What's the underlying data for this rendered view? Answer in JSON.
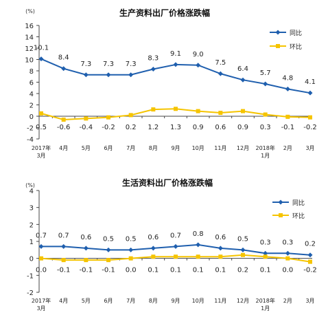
{
  "colors": {
    "yoy": "#1f5fae",
    "mom": "#f5c400",
    "axis": "#444444",
    "frame": "#bfbfbf"
  },
  "chart_data": [
    {
      "type": "line",
      "title": "生产资料出厂价格涨跌幅",
      "unit": "(%)",
      "categories": [
        "2017年\n3月",
        "4月",
        "5月",
        "6月",
        "7月",
        "8月",
        "9月",
        "10月",
        "11月",
        "12月",
        "2018年\n1月",
        "2月",
        "3月"
      ],
      "series": [
        {
          "name": "同比",
          "values": [
            10.1,
            8.4,
            7.3,
            7.3,
            7.3,
            8.3,
            9.1,
            9.0,
            7.5,
            6.4,
            5.7,
            4.8,
            4.1
          ]
        },
        {
          "name": "环比",
          "values": [
            0.5,
            -0.6,
            -0.4,
            -0.2,
            0.2,
            1.2,
            1.3,
            0.9,
            0.6,
            0.9,
            0.3,
            -0.1,
            -0.2
          ]
        }
      ],
      "ylim": [
        -4,
        16
      ],
      "yticks": [
        -4,
        -2,
        0,
        2,
        4,
        6,
        8,
        10,
        12,
        14,
        16
      ],
      "legend": "top-right"
    },
    {
      "type": "line",
      "title": "生活资料出厂价格涨跌幅",
      "unit": "(%)",
      "categories": [
        "2017年\n3月",
        "4月",
        "5月",
        "6月",
        "7月",
        "8月",
        "9月",
        "10月",
        "11月",
        "12月",
        "2018年\n1月",
        "2月",
        "3月"
      ],
      "series": [
        {
          "name": "同比",
          "values": [
            0.7,
            0.7,
            0.6,
            0.5,
            0.5,
            0.6,
            0.7,
            0.8,
            0.6,
            0.5,
            0.3,
            0.3,
            0.2
          ]
        },
        {
          "name": "环比",
          "values": [
            0.0,
            -0.1,
            -0.1,
            -0.1,
            0.0,
            0.1,
            0.1,
            0.1,
            0.1,
            0.2,
            0.1,
            0.0,
            -0.2
          ]
        }
      ],
      "ylim": [
        -2,
        4
      ],
      "yticks": [
        -2,
        -1,
        0,
        1,
        2,
        3,
        4
      ],
      "legend": "top-right"
    }
  ]
}
